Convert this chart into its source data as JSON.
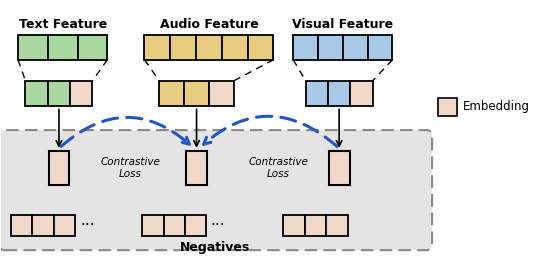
{
  "fig_width": 5.36,
  "fig_height": 2.72,
  "dpi": 100,
  "bg_color": "#ffffff",
  "text_feature_color": "#a8d8a0",
  "audio_feature_color": "#e8cc80",
  "visual_feature_color": "#a8c8e8",
  "embedding_color": "#f0d8c8",
  "negatives_bg": "#e4e4e4",
  "title_text": "Text Feature",
  "title_audio": "Audio Feature",
  "title_visual": "Visual Feature",
  "label_negatives": "Negatives",
  "label_embedding": "Embedding",
  "label_contrastive": "Contrastive\nLoss",
  "blue_arrow_color": "#2255cc"
}
